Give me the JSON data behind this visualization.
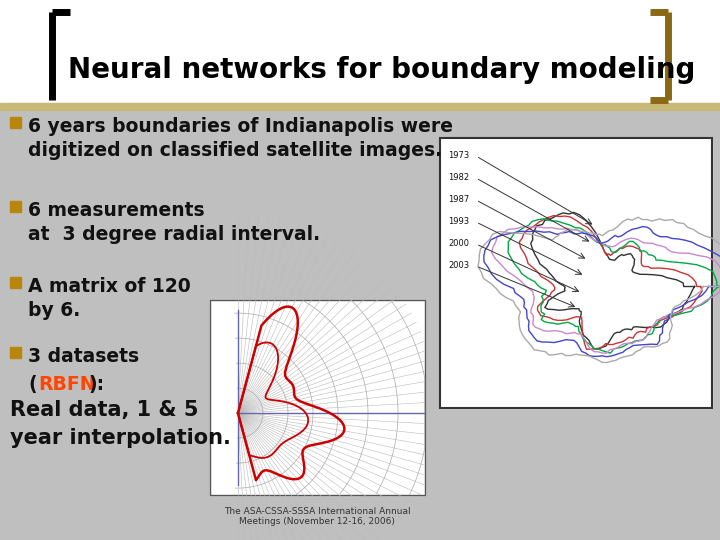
{
  "title": "Neural networks for boundary modeling",
  "title_fontsize": 20,
  "title_color": "#000000",
  "bracket_left_color": "#000000",
  "bracket_right_color": "#8B6914",
  "background_top_color": "#ffffff",
  "background_bottom_color": "#c8c8c8",
  "bullet_marker_color": "#b8860b",
  "text_color": "#111111",
  "rbfn_color": "#FF4500",
  "caption": "The ASA-CSSA-SSSA International Annual\nMeetings (November 12-16, 2006)",
  "caption_fontsize": 6.5,
  "map_legend_labels": [
    "1973",
    "1982",
    "1987",
    "1993",
    "2000",
    "2003"
  ],
  "map_legend_colors": [
    "#333333",
    "#cc3333",
    "#00aa44",
    "#cc88cc",
    "#4444cc",
    "#aaaaaa"
  ],
  "polar_blob_color": "#cc0000",
  "polar_grid_color": "#aaaaaa",
  "polar_axis_color": "#6666aa"
}
